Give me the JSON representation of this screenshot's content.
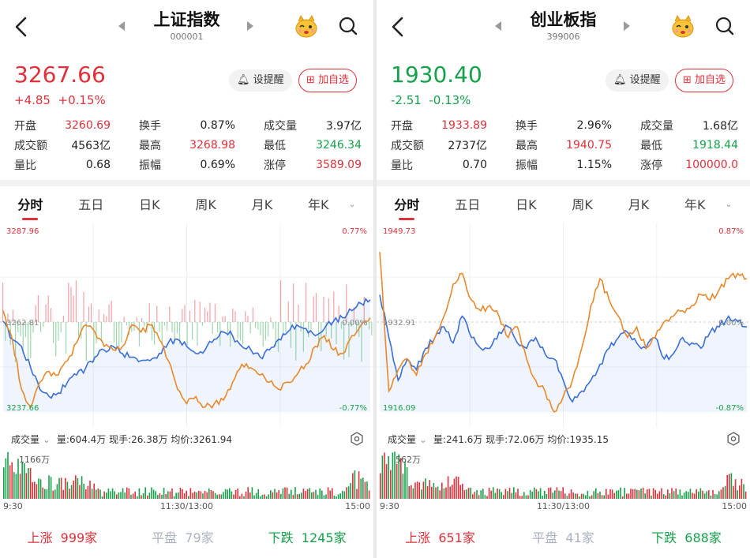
{
  "panels": [
    {
      "title": "上证指数",
      "code": "000001",
      "price": "3267.66",
      "change": "+4.85",
      "change_pct": "+0.15%",
      "direction": "up",
      "remind_label": "设提醒",
      "add_label": "加自选",
      "stats": [
        [
          [
            "开盘",
            "3260.69",
            "red"
          ],
          [
            "换手",
            "0.87%",
            ""
          ],
          [
            "成交量",
            "3.97亿",
            ""
          ]
        ],
        [
          [
            "成交额",
            "4563亿",
            ""
          ],
          [
            "最高",
            "3268.98",
            "red"
          ],
          [
            "最低",
            "3246.34",
            "green"
          ]
        ],
        [
          [
            "量比",
            "0.68",
            ""
          ],
          [
            "振幅",
            "0.69%",
            ""
          ],
          [
            "涨停",
            "3589.09",
            "red"
          ]
        ]
      ],
      "tabs": [
        "分时",
        "五日",
        "日K",
        "周K",
        "月K",
        "年K"
      ],
      "active_tab": "分时",
      "chart_top": "3287.96",
      "chart_mid": "3262.81",
      "chart_bot": "3237.66",
      "pct_top": "0.77%",
      "pct_mid": "0.00%",
      "pct_bot": "-0.77%",
      "vol_dropdown": "成交量",
      "vol_info": "量:604.4万  现手:26.38万  均价:3261.94",
      "vol_max": "1166万",
      "time_start": "9:30",
      "time_mid": "11:30/13:00",
      "time_end": "15:00",
      "breadth": {
        "up_label": "上涨",
        "up": "999家",
        "flat_label": "平盘",
        "flat": "79家",
        "down_label": "下跌",
        "down": "1245家"
      },
      "chart_data": {
        "type": "line",
        "ylim": [
          3237.66,
          3287.96
        ],
        "series": [
          {
            "values": [
              3263,
              3258,
              3256,
              3250,
              3244,
              3242,
              3243,
              3246,
              3248,
              3250,
              3253,
              3255,
              3256,
              3254,
              3253,
              3252,
              3252,
              3254,
              3257,
              3258,
              3256,
              3254,
              3255,
              3258,
              3260,
              3259,
              3256,
              3255,
              3253,
              3255,
              3258,
              3260,
              3262,
              3261,
              3259,
              3261,
              3263,
              3264,
              3266,
              3268,
              3269
            ]
          },
          {
            "values": [
              3266,
              3258,
              3244,
              3239,
              3246,
              3249,
              3248,
              3252,
              3257,
              3262,
              3260,
              3256,
              3255,
              3256,
              3262,
              3260,
              3262,
              3258,
              3252,
              3244,
              3240,
              3242,
              3239,
              3240,
              3241,
              3246,
              3251,
              3250,
              3248,
              3246,
              3244,
              3246,
              3248,
              3251,
              3256,
              3259,
              3255,
              3254,
              3259,
              3262,
              3264
            ]
          }
        ]
      },
      "colors": {
        "line": "#3a6fd8",
        "avg": "#e8892e",
        "up": "#e0313a",
        "down": "#16a14a"
      }
    },
    {
      "title": "创业板指",
      "code": "399006",
      "price": "1930.40",
      "change": "-2.51",
      "change_pct": "-0.13%",
      "direction": "down",
      "remind_label": "设提醒",
      "add_label": "加自选",
      "stats": [
        [
          [
            "开盘",
            "1933.89",
            "red"
          ],
          [
            "换手",
            "2.96%",
            ""
          ],
          [
            "成交量",
            "1.68亿",
            ""
          ]
        ],
        [
          [
            "成交额",
            "2737亿",
            ""
          ],
          [
            "最高",
            "1940.75",
            "red"
          ],
          [
            "最低",
            "1918.44",
            "green"
          ]
        ],
        [
          [
            "量比",
            "0.70",
            ""
          ],
          [
            "振幅",
            "1.15%",
            ""
          ],
          [
            "涨停",
            "100000.0",
            "red"
          ]
        ]
      ],
      "tabs": [
        "分时",
        "五日",
        "日K",
        "周K",
        "月K",
        "年K"
      ],
      "active_tab": "分时",
      "chart_top": "1949.73",
      "chart_mid": "1932.91",
      "chart_bot": "1916.09",
      "pct_top": "0.87%",
      "pct_mid": "0.00%",
      "pct_bot": "-0.87%",
      "vol_dropdown": "成交量",
      "vol_info": "量:241.6万  现手:72.06万  均价:1935.15",
      "vol_max": "562万",
      "time_start": "9:30",
      "time_mid": "11:30/13:00",
      "time_end": "15:00",
      "breadth": {
        "up_label": "上涨",
        "up": "651家",
        "flat_label": "平盘",
        "flat": "41家",
        "down_label": "下跌",
        "down": "688家"
      },
      "chart_data": {
        "type": "line",
        "ylim": [
          1916.09,
          1949.73
        ],
        "series": [
          {
            "values": [
              1938,
              1930,
              1922,
              1926,
              1924,
              1928,
              1930,
              1932,
              1929,
              1934,
              1930,
              1928,
              1928,
              1931,
              1932,
              1929,
              1928,
              1930,
              1927,
              1926,
              1922,
              1918,
              1920,
              1922,
              1925,
              1928,
              1930,
              1931,
              1929,
              1928,
              1930,
              1926,
              1927,
              1930,
              1929,
              1928,
              1931,
              1932,
              1934,
              1933,
              1932
            ]
          },
          {
            "values": [
              1946,
              1920,
              1924,
              1926,
              1923,
              1927,
              1930,
              1934,
              1940,
              1942,
              1937,
              1935,
              1936,
              1934,
              1930,
              1932,
              1926,
              1922,
              1920,
              1916,
              1919,
              1922,
              1928,
              1936,
              1941,
              1937,
              1934,
              1930,
              1932,
              1928,
              1930,
              1933,
              1934,
              1935,
              1936,
              1938,
              1937,
              1939,
              1941,
              1942,
              1941
            ]
          }
        ]
      },
      "colors": {
        "line": "#3a6fd8",
        "avg": "#e8892e",
        "up": "#e0313a",
        "down": "#16a14a"
      }
    }
  ]
}
